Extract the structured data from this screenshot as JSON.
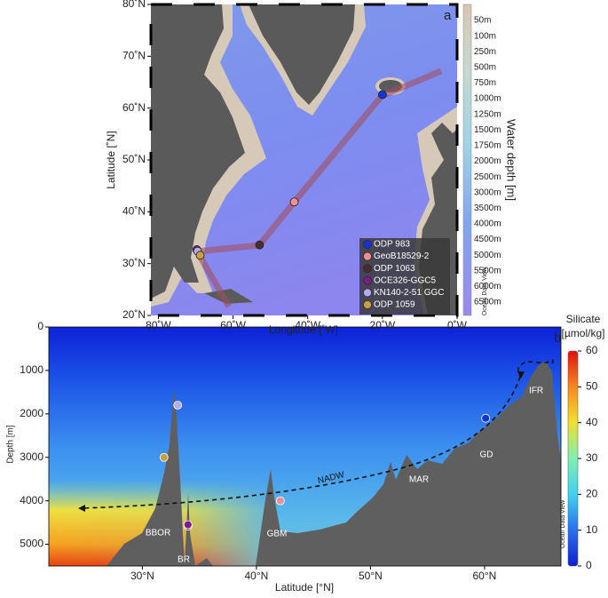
{
  "chart_data": [
    {
      "type": "map",
      "panel_label": "a",
      "xlabel": "Longitude [˚W]",
      "ylabel": "Latitude [˚N]",
      "xlim": [
        -82,
        0
      ],
      "ylim": [
        20,
        80
      ],
      "xticks": [
        {
          "value": -80,
          "label": "80˚W"
        },
        {
          "value": -60,
          "label": "60˚W"
        },
        {
          "value": -40,
          "label": "40˚W"
        },
        {
          "value": -20,
          "label": "20˚W"
        },
        {
          "value": 0,
          "label": "0˚W"
        }
      ],
      "yticks": [
        {
          "value": 20,
          "label": "20˚N"
        },
        {
          "value": 30,
          "label": "30˚N"
        },
        {
          "value": 40,
          "label": "40˚N"
        },
        {
          "value": 50,
          "label": "50˚N"
        },
        {
          "value": 60,
          "label": "60˚N"
        },
        {
          "value": 70,
          "label": "70˚N"
        },
        {
          "value": 80,
          "label": "80˚N"
        }
      ],
      "series": [
        {
          "name": "ODP 983",
          "color": "#1534d6",
          "x": [
            -20
          ],
          "y": [
            62.6
          ]
        },
        {
          "name": "GeoB18529-2",
          "color": "#f28e8e",
          "x": [
            -43.6
          ],
          "y": [
            41.9
          ]
        },
        {
          "name": "ODP 1063",
          "color": "#4a2c2c",
          "x": [
            -52.9
          ],
          "y": [
            33.6
          ]
        },
        {
          "name": "OCE326-GGC5",
          "color": "#7d1a8c",
          "x": [
            -69.7
          ],
          "y": [
            32.7
          ]
        },
        {
          "name": "KN140-2-51 GGC",
          "color": "#b4aaf2",
          "x": [
            -69.5
          ],
          "y": [
            32.4
          ]
        },
        {
          "name": "ODP 1059",
          "color": "#c9a040",
          "x": [
            -68.8
          ],
          "y": [
            31.6
          ]
        }
      ],
      "colorbar_title": "Water depth [m]",
      "colorbar_labels": [
        "50m",
        "100m",
        "250m",
        "500m",
        "750m",
        "1000m",
        "1250m",
        "1500m",
        "1750m",
        "2000m",
        "2500m",
        "3000m",
        "3500m",
        "4000m",
        "4500m",
        "5000m",
        "5500m",
        "6000m",
        "6500m"
      ],
      "watermark": "Ocean Data View"
    },
    {
      "type": "section",
      "panel_label": "b",
      "xlabel": "Latitude [°N]",
      "ylabel": "Depth [m]",
      "xlim": [
        21.8,
        66.7
      ],
      "ylim": [
        0,
        5500
      ],
      "xticks": [
        {
          "value": 30,
          "label": "30°N"
        },
        {
          "value": 40,
          "label": "40°N"
        },
        {
          "value": 50,
          "label": "50°N"
        },
        {
          "value": 60,
          "label": "60°N"
        }
      ],
      "yticks": [
        0,
        1000,
        2000,
        3000,
        4000,
        5000
      ],
      "points": {
        "x": [
          60.1,
          42.1,
          34.0,
          34.0,
          33.1,
          31.9
        ],
        "y": [
          2100,
          4000,
          4580,
          4550,
          1800,
          3000
        ],
        "colors": [
          "#1534d6",
          "#f28e8e",
          "#4a2c2c",
          "#7d1a8c",
          "#b4aaf2",
          "#c9a040"
        ]
      },
      "annotations": [
        "BBOR",
        "BR",
        "GBM",
        "MAR",
        "GD",
        "IFR",
        "NADW"
      ],
      "colorbar_title": [
        "Silicate",
        "[µmol/kg]"
      ],
      "clim": [
        0,
        60
      ],
      "colorbar_ticks": [
        0,
        10,
        20,
        30,
        40,
        50,
        60
      ],
      "watermark": "Ocean Data View"
    }
  ]
}
